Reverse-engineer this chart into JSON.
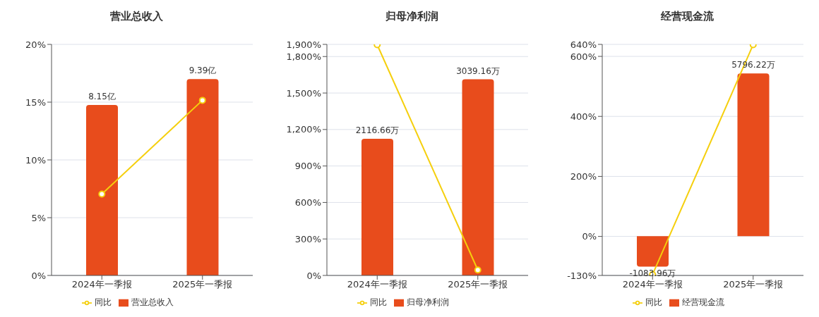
{
  "chart_data": [
    {
      "type": "bar",
      "title": "营业总收入",
      "categories": [
        "2024年一季报",
        "2025年一季报"
      ],
      "series": [
        {
          "name": "营业总收入",
          "color": "#e84c1c",
          "values": [
            8.15,
            9.39
          ],
          "value_labels": [
            "8.15亿",
            "9.39亿"
          ],
          "axis": "y2"
        },
        {
          "type": "line",
          "name": "同比",
          "color": "#f5cf0d",
          "values": [
            7.04,
            15.16
          ],
          "marker": "circle"
        }
      ],
      "ylim": [
        0,
        20
      ],
      "yticks": [
        {
          "value": 0,
          "label": "0%"
        },
        {
          "value": 5,
          "label": "5%"
        },
        {
          "value": 10,
          "label": "10%"
        },
        {
          "value": 15,
          "label": "15%"
        },
        {
          "value": 20,
          "label": "20%"
        }
      ],
      "y2lim": [
        0,
        11.05
      ],
      "grid": "y",
      "legend": "bottom"
    },
    {
      "type": "bar",
      "title": "归母净利润",
      "categories": [
        "2024年一季报",
        "2025年一季报"
      ],
      "series": [
        {
          "name": "归母净利润",
          "color": "#e84c1c",
          "values": [
            2116.66,
            3039.16
          ],
          "value_labels": [
            "2116.66万",
            "3039.16万"
          ],
          "axis": "y2"
        },
        {
          "type": "line",
          "name": "同比",
          "color": "#f5cf0d",
          "values": [
            1897,
            45
          ],
          "marker": "circle"
        }
      ],
      "ylim": [
        0,
        1900
      ],
      "yticks": [
        {
          "value": 0,
          "label": "0%"
        },
        {
          "value": 300,
          "label": "300%"
        },
        {
          "value": 600,
          "label": "600%"
        },
        {
          "value": 900,
          "label": "900%"
        },
        {
          "value": 1200,
          "label": "1,200%"
        },
        {
          "value": 1500,
          "label": "1,500%"
        },
        {
          "value": 1800,
          "label": "1,800%"
        },
        {
          "value": 1900,
          "label": "1,900%"
        }
      ],
      "y2lim": [
        0,
        3580
      ],
      "grid": "y",
      "legend": "bottom"
    },
    {
      "type": "bar",
      "title": "经营现金流",
      "categories": [
        "2024年一季报",
        "2025年一季报"
      ],
      "series": [
        {
          "name": "经营现金流",
          "color": "#e84c1c",
          "values": [
            -1083.96,
            5796.22
          ],
          "value_labels": [
            "-1083.96万",
            "5796.22万"
          ],
          "axis": "y2"
        },
        {
          "type": "line",
          "name": "同比",
          "color": "#f5cf0d",
          "values": [
            -127,
            639
          ],
          "marker": "circle"
        }
      ],
      "ylim": [
        -130,
        640
      ],
      "yticks": [
        {
          "value": -130,
          "label": "-130%"
        },
        {
          "value": 0,
          "label": "0%"
        },
        {
          "value": 200,
          "label": "200%"
        },
        {
          "value": 400,
          "label": "400%"
        },
        {
          "value": 600,
          "label": "600%"
        },
        {
          "value": 640,
          "label": "640%"
        }
      ],
      "y2lim": [
        -1400,
        6830
      ],
      "grid": "y",
      "legend": "bottom"
    }
  ]
}
